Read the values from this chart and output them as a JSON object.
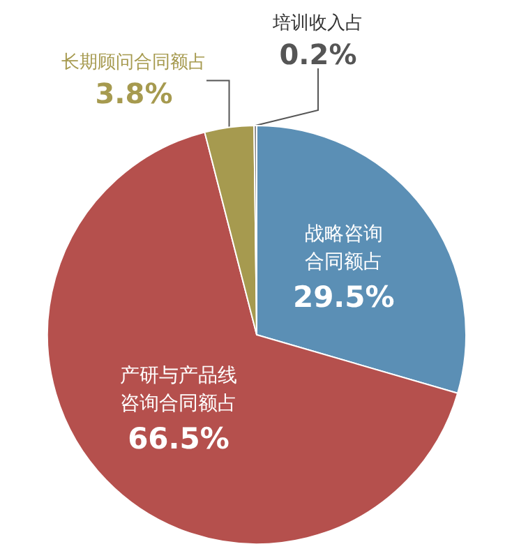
{
  "chart_data": {
    "type": "pie",
    "categories": [
      "战略咨询合同额占",
      "产研与产品线咨询合同额占",
      "长期顾问合同额占",
      "培训收入占"
    ],
    "values": [
      29.5,
      66.5,
      3.8,
      0.2
    ],
    "value_labels": [
      "29.5%",
      "66.5%",
      "3.8%",
      "0.2%"
    ],
    "colors": [
      "#5b8fb5",
      "#b5504d",
      "#a69a4f",
      "#7f7f7f"
    ],
    "legend": false
  }
}
